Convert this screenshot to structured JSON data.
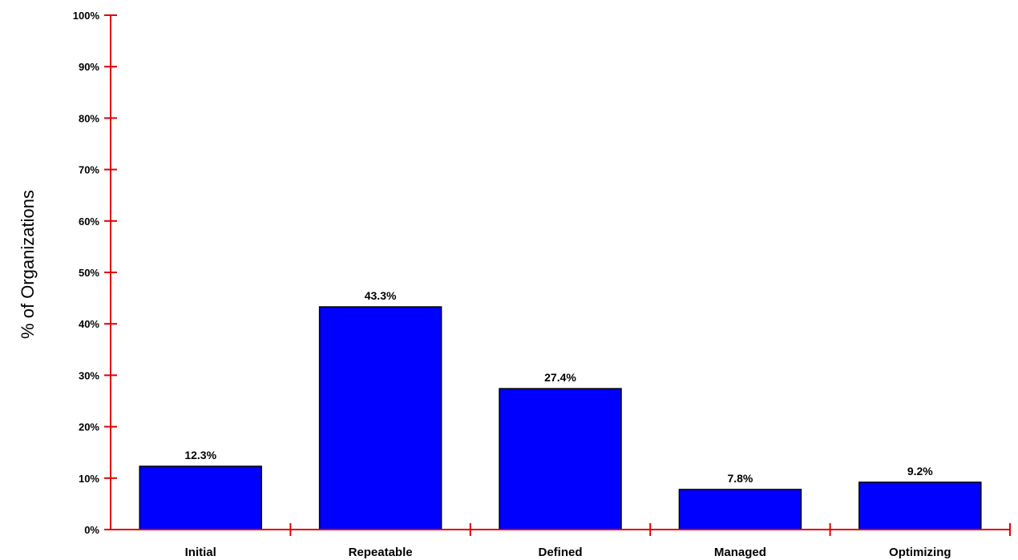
{
  "chart_data": {
    "type": "bar",
    "title": "",
    "xlabel": "",
    "ylabel": "% of Organizations",
    "categories": [
      "Initial",
      "Repeatable",
      "Defined",
      "Managed",
      "Optimizing"
    ],
    "values": [
      12.3,
      43.3,
      27.4,
      7.8,
      9.2
    ],
    "value_labels": [
      "12.3%",
      "43.3%",
      "27.4%",
      "7.8%",
      "9.2%"
    ],
    "ylim": [
      0,
      100
    ],
    "yticks": [
      0,
      10,
      20,
      30,
      40,
      50,
      60,
      70,
      80,
      90,
      100
    ],
    "ytick_labels": [
      "0%",
      "10%",
      "20%",
      "30%",
      "40%",
      "50%",
      "60%",
      "70%",
      "80%",
      "90%",
      "100%"
    ],
    "grid": false,
    "legend": "none",
    "colors": {
      "bar": "#0000ff",
      "bar_edge": "#000000",
      "axis": "#e00000"
    }
  }
}
